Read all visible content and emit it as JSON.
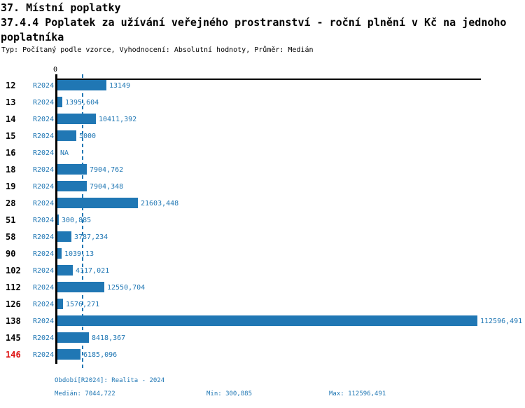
{
  "header": {
    "section_title": "37. Místní poplatky",
    "title_line1": "37.4.4 Poplatek za užívání veřejného prostranství - roční plnění v Kč na jednoho",
    "title_line2": "poplatníka",
    "meta": "Typ: Počítaný podle vzorce, Vyhodnocení: Absolutní hodnoty, Průměr: Medián"
  },
  "colors": {
    "accent_blue": "#2077b4",
    "highlight_red": "#dd1111",
    "axis_black": "#000000"
  },
  "chart_data": {
    "type": "bar",
    "orientation": "horizontal",
    "series_label": "R2024",
    "axis_zero_label": "0",
    "xlim": [
      0,
      113700
    ],
    "median_value": 7044.722,
    "min_value": 300.885,
    "max_value": 112596.491,
    "rows": [
      {
        "category": "12",
        "value": 13149,
        "label": "13149",
        "highlight": false
      },
      {
        "category": "13",
        "value": 1395.604,
        "label": "1395,604",
        "highlight": false
      },
      {
        "category": "14",
        "value": 10411.392,
        "label": "10411,392",
        "highlight": false
      },
      {
        "category": "15",
        "value": 5000,
        "label": "5000",
        "highlight": false
      },
      {
        "category": "16",
        "value": null,
        "label": "NA",
        "highlight": false
      },
      {
        "category": "18",
        "value": 7904.762,
        "label": "7904,762",
        "highlight": false
      },
      {
        "category": "19",
        "value": 7904.348,
        "label": "7904,348",
        "highlight": false
      },
      {
        "category": "28",
        "value": 21603.448,
        "label": "21603,448",
        "highlight": false
      },
      {
        "category": "51",
        "value": 300.885,
        "label": "300,885",
        "highlight": false
      },
      {
        "category": "58",
        "value": 3787.234,
        "label": "3787,234",
        "highlight": false
      },
      {
        "category": "90",
        "value": 1039.13,
        "label": "1039,13",
        "highlight": false
      },
      {
        "category": "102",
        "value": 4117.021,
        "label": "4117,021",
        "highlight": false
      },
      {
        "category": "112",
        "value": 12550.704,
        "label": "12550,704",
        "highlight": false
      },
      {
        "category": "126",
        "value": 1576.271,
        "label": "1576,271",
        "highlight": false
      },
      {
        "category": "138",
        "value": 112596.491,
        "label": "112596,491",
        "highlight": false
      },
      {
        "category": "145",
        "value": 8418.367,
        "label": "8418,367",
        "highlight": false
      },
      {
        "category": "146",
        "value": 6185.096,
        "label": "6185,096",
        "highlight": true
      }
    ]
  },
  "footer": {
    "period": "Období[R2024]: Realita - 2024",
    "median": "Medián: 7044,722",
    "min": "Min: 300,885",
    "max": "Max: 112596,491"
  }
}
